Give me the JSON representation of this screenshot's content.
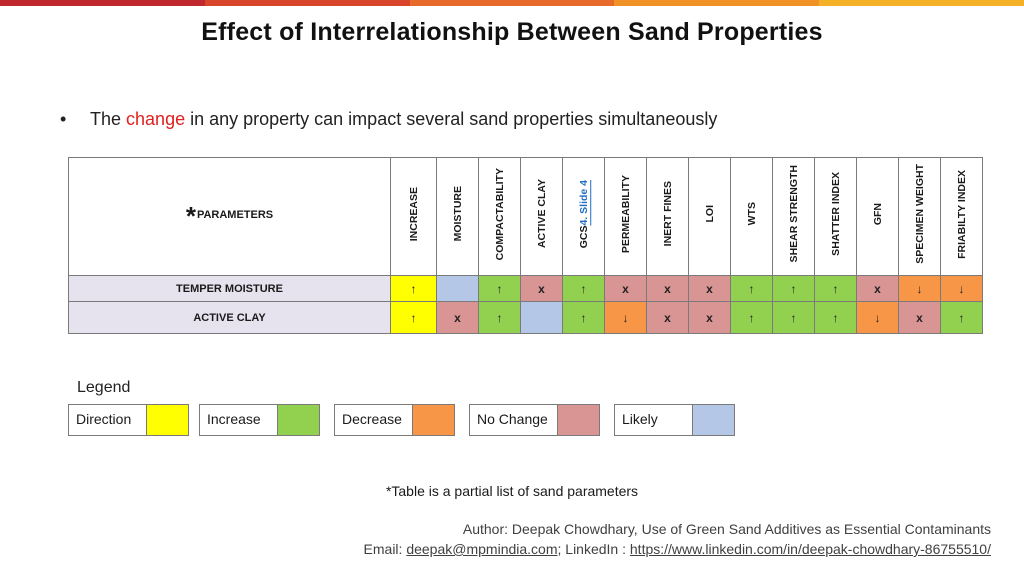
{
  "colors": {
    "topbar": [
      "#c0282d",
      "#d9452b",
      "#e86a2a",
      "#f09226",
      "#f4b027"
    ],
    "direction": "#ffff00",
    "increase": "#92d050",
    "decrease": "#f79646",
    "no_change": "#d99594",
    "likely": "#b4c7e7",
    "highlight": "#e02020"
  },
  "title": "Effect of Interrelationship Between Sand Properties",
  "bullet": {
    "symbol": "•",
    "before": "The ",
    "highlight": "change",
    "after": " in any property can impact several sand properties simultaneously"
  },
  "table": {
    "param_star": "*",
    "param_label": "PARAMETERS",
    "columns": [
      {
        "label": "INCREASE"
      },
      {
        "label": "MOISTURE"
      },
      {
        "label": "COMPACTABILITY"
      },
      {
        "label": "ACTIVE CLAY"
      },
      {
        "label": "GCS",
        "link": "4. Slide 4"
      },
      {
        "label": "PERMEABILITY"
      },
      {
        "label": "INERT FINES"
      },
      {
        "label": "LOI"
      },
      {
        "label": "WTS"
      },
      {
        "label": "SHEAR STRENGTH"
      },
      {
        "label": "SHATTER INDEX"
      },
      {
        "label": "GFN"
      },
      {
        "label": "SPECIMEN WEIGHT"
      },
      {
        "label": "FRIABILTY INDEX"
      }
    ],
    "rows": [
      {
        "label": "TEMPER MOISTURE",
        "cells": [
          {
            "v": "↑",
            "c": "direction"
          },
          {
            "v": "",
            "c": "likely"
          },
          {
            "v": "↑",
            "c": "increase"
          },
          {
            "v": "x",
            "c": "no_change"
          },
          {
            "v": "↑",
            "c": "increase"
          },
          {
            "v": "x",
            "c": "no_change"
          },
          {
            "v": "x",
            "c": "no_change"
          },
          {
            "v": "x",
            "c": "no_change"
          },
          {
            "v": "↑",
            "c": "increase"
          },
          {
            "v": "↑",
            "c": "increase"
          },
          {
            "v": "↑",
            "c": "increase"
          },
          {
            "v": "x",
            "c": "no_change"
          },
          {
            "v": "↓",
            "c": "decrease"
          },
          {
            "v": "↓",
            "c": "decrease"
          }
        ]
      },
      {
        "label": "ACTIVE CLAY",
        "cells": [
          {
            "v": "↑",
            "c": "direction"
          },
          {
            "v": "x",
            "c": "no_change"
          },
          {
            "v": "↑",
            "c": "increase"
          },
          {
            "v": "",
            "c": "likely"
          },
          {
            "v": "↑",
            "c": "increase"
          },
          {
            "v": "↓",
            "c": "decrease"
          },
          {
            "v": "x",
            "c": "no_change"
          },
          {
            "v": "x",
            "c": "no_change"
          },
          {
            "v": "↑",
            "c": "increase"
          },
          {
            "v": "↑",
            "c": "increase"
          },
          {
            "v": "↑",
            "c": "increase"
          },
          {
            "v": "↓",
            "c": "decrease"
          },
          {
            "v": "x",
            "c": "no_change"
          },
          {
            "v": "↑",
            "c": "increase"
          }
        ]
      }
    ]
  },
  "legend": {
    "title": "Legend",
    "items": [
      {
        "label": "Direction",
        "c": "direction"
      },
      {
        "label": "Increase",
        "c": "increase"
      },
      {
        "label": "Decrease",
        "c": "decrease"
      },
      {
        "label": "No Change",
        "c": "no_change"
      },
      {
        "label": "Likely",
        "c": "likely"
      }
    ]
  },
  "footnote": "*Table is a partial list of sand parameters",
  "author": "Author: Deepak Chowdhary, Use of Green Sand Additives as Essential Contaminants",
  "contact": {
    "email_label": "Email: ",
    "email": "deepak@mpmindia.com",
    "sep": "; LinkedIn : ",
    "linkedin": "https://www.linkedin.com/in/deepak-chowdhary-86755510/"
  }
}
